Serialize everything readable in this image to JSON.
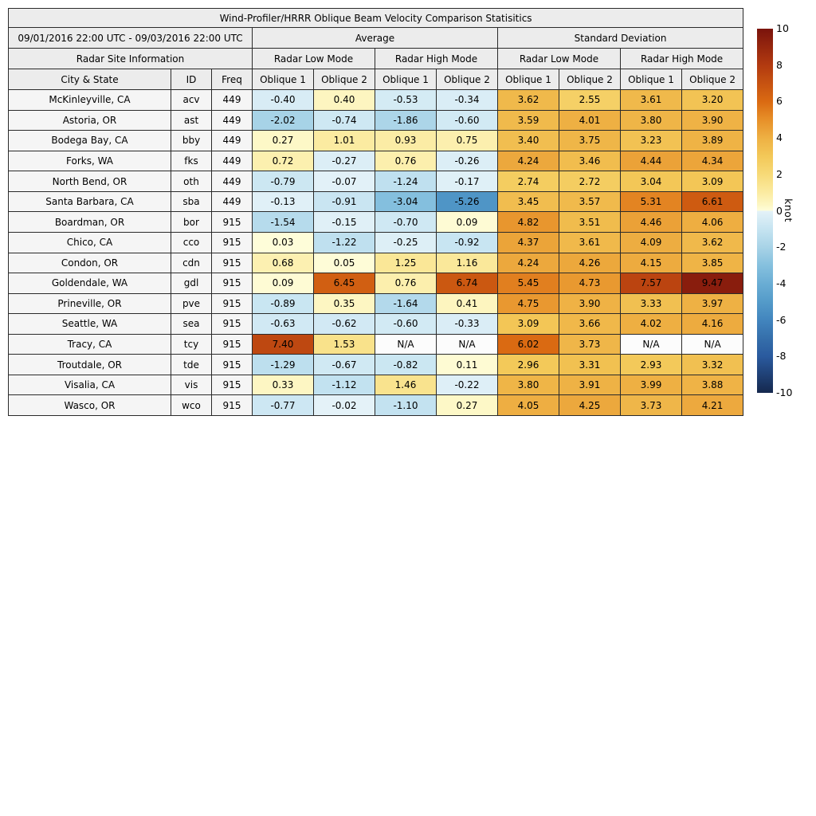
{
  "chart_data": {
    "type": "heatmap",
    "title": "Wind-Profiler/HRRR Oblique Beam Velocity Comparison Statisitics",
    "date_range": "09/01/2016 22:00 UTC - 09/03/2016 22:00 UTC",
    "group_headers": [
      "Average",
      "Standard Deviation"
    ],
    "site_info_header": "Radar Site Information",
    "mode_headers": [
      "Radar Low Mode",
      "Radar High Mode",
      "Radar Low Mode",
      "Radar High Mode"
    ],
    "col_headers": [
      "City & State",
      "ID",
      "Freq",
      "Oblique 1",
      "Oblique 2",
      "Oblique 1",
      "Oblique 2",
      "Oblique 1",
      "Oblique 2",
      "Oblique 1",
      "Oblique 2"
    ],
    "rows": [
      {
        "city": "McKinleyville, CA",
        "id": "acv",
        "freq": "449",
        "values": [
          "-0.40",
          "0.40",
          "-0.53",
          "-0.34",
          "3.62",
          "2.55",
          "3.61",
          "3.20"
        ]
      },
      {
        "city": "Astoria, OR",
        "id": "ast",
        "freq": "449",
        "values": [
          "-2.02",
          "-0.74",
          "-1.86",
          "-0.60",
          "3.59",
          "4.01",
          "3.80",
          "3.90"
        ]
      },
      {
        "city": "Bodega Bay, CA",
        "id": "bby",
        "freq": "449",
        "values": [
          "0.27",
          "1.01",
          "0.93",
          "0.75",
          "3.40",
          "3.75",
          "3.23",
          "3.89"
        ]
      },
      {
        "city": "Forks, WA",
        "id": "fks",
        "freq": "449",
        "values": [
          "0.72",
          "-0.27",
          "0.76",
          "-0.26",
          "4.24",
          "3.46",
          "4.44",
          "4.34"
        ]
      },
      {
        "city": "North Bend, OR",
        "id": "oth",
        "freq": "449",
        "values": [
          "-0.79",
          "-0.07",
          "-1.24",
          "-0.17",
          "2.74",
          "2.72",
          "3.04",
          "3.09"
        ]
      },
      {
        "city": "Santa Barbara, CA",
        "id": "sba",
        "freq": "449",
        "values": [
          "-0.13",
          "-0.91",
          "-3.04",
          "-5.26",
          "3.45",
          "3.57",
          "5.31",
          "6.61"
        ]
      },
      {
        "city": "Boardman, OR",
        "id": "bor",
        "freq": "915",
        "values": [
          "-1.54",
          "-0.15",
          "-0.70",
          "0.09",
          "4.82",
          "3.51",
          "4.46",
          "4.06"
        ]
      },
      {
        "city": "Chico, CA",
        "id": "cco",
        "freq": "915",
        "values": [
          "0.03",
          "-1.22",
          "-0.25",
          "-0.92",
          "4.37",
          "3.61",
          "4.09",
          "3.62"
        ]
      },
      {
        "city": "Condon, OR",
        "id": "cdn",
        "freq": "915",
        "values": [
          "0.68",
          "0.05",
          "1.25",
          "1.16",
          "4.24",
          "4.26",
          "4.15",
          "3.85"
        ]
      },
      {
        "city": "Goldendale, WA",
        "id": "gdl",
        "freq": "915",
        "values": [
          "0.09",
          "6.45",
          "0.76",
          "6.74",
          "5.45",
          "4.73",
          "7.57",
          "9.47"
        ]
      },
      {
        "city": "Prineville, OR",
        "id": "pve",
        "freq": "915",
        "values": [
          "-0.89",
          "0.35",
          "-1.64",
          "0.41",
          "4.75",
          "3.90",
          "3.33",
          "3.97"
        ]
      },
      {
        "city": "Seattle, WA",
        "id": "sea",
        "freq": "915",
        "values": [
          "-0.63",
          "-0.62",
          "-0.60",
          "-0.33",
          "3.09",
          "3.66",
          "4.02",
          "4.16"
        ]
      },
      {
        "city": "Tracy, CA",
        "id": "tcy",
        "freq": "915",
        "values": [
          "7.40",
          "1.53",
          "N/A",
          "N/A",
          "6.02",
          "3.73",
          "N/A",
          "N/A"
        ]
      },
      {
        "city": "Troutdale, OR",
        "id": "tde",
        "freq": "915",
        "values": [
          "-1.29",
          "-0.67",
          "-0.82",
          "0.11",
          "2.96",
          "3.31",
          "2.93",
          "3.32"
        ]
      },
      {
        "city": "Visalia, CA",
        "id": "vis",
        "freq": "915",
        "values": [
          "0.33",
          "-1.12",
          "1.46",
          "-0.22",
          "3.80",
          "3.91",
          "3.99",
          "3.88"
        ]
      },
      {
        "city": "Wasco, OR",
        "id": "wco",
        "freq": "915",
        "values": [
          "-0.77",
          "-0.02",
          "-1.10",
          "0.27",
          "4.05",
          "4.25",
          "3.73",
          "4.21"
        ]
      }
    ],
    "colorbar": {
      "label": "knot",
      "min": -10,
      "max": 10,
      "ticks": [
        "10",
        "8",
        "6",
        "4",
        "2",
        "0",
        "-2",
        "-4",
        "-6",
        "-8",
        "-10"
      ]
    },
    "colormap_stops": [
      {
        "v": 10,
        "c": "#7a130c"
      },
      {
        "v": 8,
        "c": "#b23a10"
      },
      {
        "v": 6,
        "c": "#da6a12"
      },
      {
        "v": 5,
        "c": "#e79029"
      },
      {
        "v": 4,
        "c": "#eeb043"
      },
      {
        "v": 3,
        "c": "#f3c858"
      },
      {
        "v": 2,
        "c": "#f7da78"
      },
      {
        "v": 1,
        "c": "#fbeba1"
      },
      {
        "v": 0.3,
        "c": "#fdf7c5"
      },
      {
        "v": 0.01,
        "c": "#fefdda"
      },
      {
        "v": -0.01,
        "c": "#e4f2f8"
      },
      {
        "v": -1,
        "c": "#c6e4f1"
      },
      {
        "v": -2,
        "c": "#a8d3e7"
      },
      {
        "v": -3,
        "c": "#85c0de"
      },
      {
        "v": -4,
        "c": "#6aadd4"
      },
      {
        "v": -5,
        "c": "#549bc9"
      },
      {
        "v": -6,
        "c": "#4285be"
      },
      {
        "v": -7,
        "c": "#356fab"
      },
      {
        "v": -8,
        "c": "#2a5a9e"
      },
      {
        "v": -10,
        "c": "#15284e"
      }
    ],
    "na_cell_color": "#fcfcfc"
  }
}
